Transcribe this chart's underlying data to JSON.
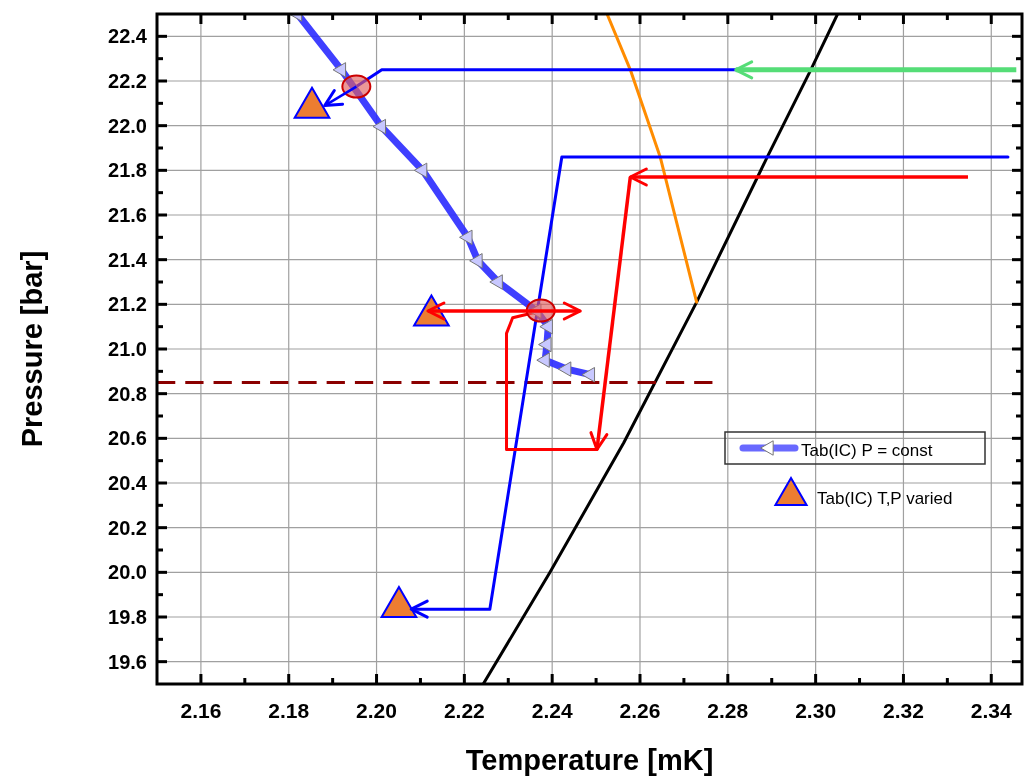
{
  "chart_data": {
    "type": "line",
    "xlabel": "Temperature [mK]",
    "ylabel": "Pressure [bar]",
    "xlim": [
      2.15,
      2.347
    ],
    "ylim": [
      19.5,
      22.5
    ],
    "xticks": [
      {
        "value": 2.16,
        "label": "2.16"
      },
      {
        "value": 2.18,
        "label": "2.18"
      },
      {
        "value": 2.2,
        "label": "2.20"
      },
      {
        "value": 2.22,
        "label": "2.22"
      },
      {
        "value": 2.24,
        "label": "2.24"
      },
      {
        "value": 2.26,
        "label": "2.26"
      },
      {
        "value": 2.28,
        "label": "2.28"
      },
      {
        "value": 2.3,
        "label": "2.30"
      },
      {
        "value": 2.32,
        "label": "2.32"
      },
      {
        "value": 2.34,
        "label": "2.34"
      }
    ],
    "yticks": [
      {
        "value": 19.6,
        "label": "19.6"
      },
      {
        "value": 19.8,
        "label": "19.8"
      },
      {
        "value": 20,
        "label": "20.0"
      },
      {
        "value": 20.2,
        "label": "20.2"
      },
      {
        "value": 20.4,
        "label": "20.4"
      },
      {
        "value": 20.6,
        "label": "20.6"
      },
      {
        "value": 20.8,
        "label": "20.8"
      },
      {
        "value": 21,
        "label": "21.0"
      },
      {
        "value": 21.2,
        "label": "21.2"
      },
      {
        "value": 21.4,
        "label": "21.4"
      },
      {
        "value": 21.6,
        "label": "21.6"
      },
      {
        "value": 21.8,
        "label": "21.8"
      },
      {
        "value": 22,
        "label": "22.0"
      },
      {
        "value": 22.2,
        "label": "22.2"
      },
      {
        "value": 22.4,
        "label": "22.4"
      }
    ],
    "grid": true,
    "legend": "right",
    "series": [
      {
        "color": "#000000",
        "marker": "none",
        "x": [
          2.2243,
          2.2395,
          2.2563,
          2.2729,
          2.289,
          2.2989,
          2.305
        ],
        "values": [
          19.5,
          20.0,
          20.58,
          21.21,
          21.86,
          22.25,
          22.5
        ]
      },
      {
        "color": "#ff8c00",
        "marker": "none",
        "x": [
          2.2525,
          2.2578,
          2.2646,
          2.2729
        ],
        "values": [
          22.5,
          22.25,
          21.86,
          21.21
        ]
      },
      {
        "color": "#8b0000",
        "marker": "none",
        "line_style": "dashed",
        "x": [
          2.15,
          2.2765
        ],
        "values": [
          20.85,
          20.85
        ]
      },
      {
        "color": "#0000ff",
        "marker": "none",
        "x": [
          2.1954,
          2.2012,
          2.2818
        ],
        "values": [
          22.175,
          22.25,
          22.25
        ]
      },
      {
        "color": "#0000ff",
        "marker": "none",
        "x": [
          2.3438,
          2.2422,
          2.2258,
          2.2095
        ],
        "values": [
          21.86,
          21.86,
          19.835,
          19.835
        ]
      },
      {
        "color": "#ff0000",
        "marker": "none",
        "x": [
          2.2502,
          2.2296,
          2.2296,
          2.231,
          2.2374
        ],
        "values": [
          20.55,
          20.55,
          21.07,
          21.14,
          21.17
        ]
      },
      {
        "name": "Tab(IC) P = const",
        "color": "#2a2aff",
        "marker": "triangle",
        "x": [
          2.182,
          2.192,
          2.2011,
          2.2105,
          2.2208,
          2.2231,
          2.2277,
          2.2365,
          2.2391,
          2.2388,
          2.2384,
          2.2433,
          2.2487
        ],
        "values": [
          22.5,
          22.25,
          21.996,
          21.8,
          21.5,
          21.395,
          21.3,
          21.17,
          21.1,
          21.02,
          20.95,
          20.91,
          20.885
        ]
      },
      {
        "type": "scatter",
        "color": "#e06060",
        "marker": "circle",
        "x": [
          2.1954,
          2.2374
        ],
        "values": [
          22.175,
          21.172
        ]
      },
      {
        "type": "scatter",
        "name": "Tab(IC) T,P varied",
        "color": "#ed7d31",
        "marker": "triangle",
        "x": [
          2.1853,
          2.2125,
          2.2051
        ],
        "values": [
          22.08,
          21.15,
          19.845
        ]
      }
    ]
  }
}
